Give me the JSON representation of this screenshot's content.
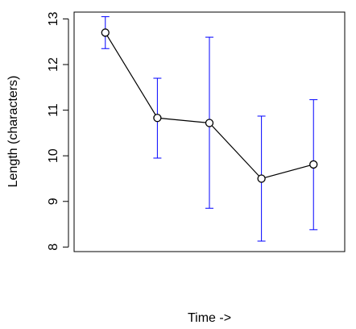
{
  "chart_data": {
    "type": "line",
    "title": "",
    "xlabel": "Time ->",
    "ylabel": "Length (characters)",
    "x": [
      1,
      2,
      3,
      4,
      5
    ],
    "ylim": [
      7.9,
      13.15
    ],
    "xlim": [
      0.4,
      5.6
    ],
    "y_ticks": [
      8,
      9,
      10,
      11,
      12,
      13
    ],
    "y_tick_labels": [
      "8",
      "9",
      "10",
      "11",
      "12",
      "13"
    ],
    "grid": false,
    "series": [
      {
        "values": [
          12.7,
          10.83,
          10.72,
          9.5,
          9.81
        ],
        "error_low": [
          12.35,
          9.95,
          8.85,
          8.13,
          8.38
        ],
        "error_high": [
          13.05,
          11.7,
          12.6,
          10.87,
          11.23
        ]
      }
    ],
    "colors": {
      "line": "#000000",
      "marker": "#000000",
      "error_bars": "#0000ff",
      "axes": "#000000"
    }
  }
}
